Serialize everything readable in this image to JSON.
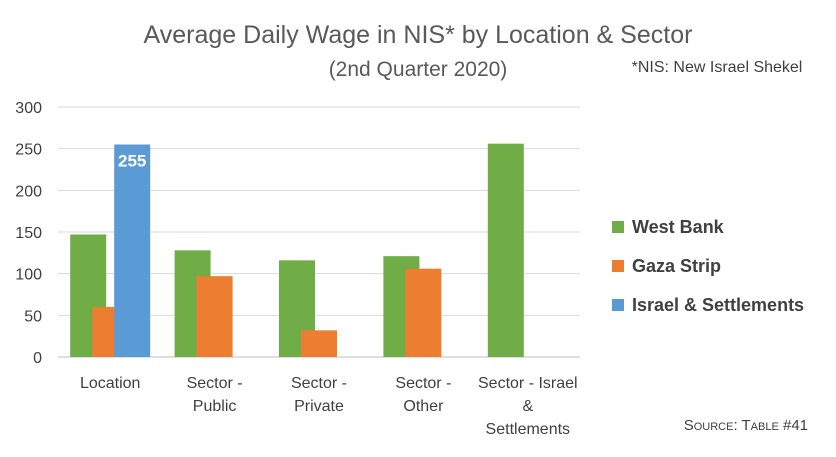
{
  "chart_data": {
    "type": "bar",
    "title": "Average Daily Wage in NIS* by Location & Sector",
    "subtitle": "(2nd Quarter 2020)",
    "footnote": "*NIS: New Israel Shekel",
    "source": "Source: Table #41",
    "xlabel": "",
    "ylabel": "",
    "ylim": [
      0,
      300
    ],
    "yticks": [
      0,
      50,
      100,
      150,
      200,
      250,
      300
    ],
    "grid": true,
    "legend_position": "right",
    "categories": [
      [
        "Location"
      ],
      [
        "Sector -",
        "Public"
      ],
      [
        "Sector -",
        "Private"
      ],
      [
        "Sector -",
        "Other"
      ],
      [
        "Sector - Israel",
        "&",
        "Settlements"
      ]
    ],
    "series": [
      {
        "name": "West Bank",
        "color": "#70ad47",
        "values": [
          147,
          128,
          116,
          121,
          256
        ]
      },
      {
        "name": "Gaza Strip",
        "color": "#ed7d31",
        "values": [
          60,
          97,
          32,
          106,
          null
        ]
      },
      {
        "name": "Israel & Settlements",
        "color": "#5b9bd5",
        "values": [
          255,
          null,
          null,
          null,
          null
        ]
      }
    ],
    "data_labels": [
      {
        "series": 2,
        "category": 0,
        "text": "255"
      }
    ]
  }
}
